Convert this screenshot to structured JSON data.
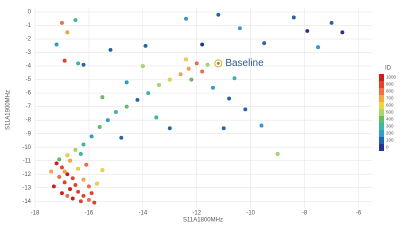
{
  "chart_data": {
    "type": "scatter",
    "x_label": "S11A1800MHz",
    "y_label": "S11A1900MHz",
    "xlim": [
      -18,
      -5.5
    ],
    "ylim": [
      -14.5,
      0.3
    ],
    "xticks": [
      -18,
      -16,
      -14,
      -12,
      -10,
      -8,
      -6
    ],
    "yticks": [
      0,
      -1,
      -2,
      -3,
      -4,
      -5,
      -6,
      -7,
      -8,
      -9,
      -10,
      -11,
      -12,
      -13,
      -14
    ],
    "grid": true,
    "x": [
      -17.2,
      -17,
      -16.8,
      -16.6,
      -16.9,
      -16.5,
      -16.7,
      -16.4,
      -16.2,
      -16.6,
      -16.3,
      -16,
      -17.1,
      -16.9,
      -16.7,
      -16.4,
      -16.2,
      -16,
      -15.9,
      -15.8,
      -17.3,
      -17,
      -16.8,
      -16.5,
      -16.2,
      -15.9,
      -15.6,
      -15.3,
      -15,
      -14.6,
      -14.2,
      -13.8,
      -13.4,
      -13,
      -12.6,
      -12.3,
      -12,
      -11.8,
      -12.4,
      -11.6,
      -12.2,
      -11.4,
      -10.8,
      -10.2,
      -9.6,
      -9,
      -17,
      -16.8,
      -16.5,
      -17.2,
      -16.9,
      -16.4,
      -16.2,
      -15.2,
      -14.6,
      -13.9,
      -13.5,
      -13,
      -12.4,
      -11.8,
      -11.2,
      -10.4,
      -9.5,
      -8.4,
      -7.9,
      -7.5,
      -7,
      -6.6,
      -10.6,
      -11,
      -14.8,
      -15.5,
      -14,
      -17.4,
      -16.1,
      -15.7,
      -16.8,
      -17.1,
      -16.3,
      -15.5
    ],
    "y": [
      -11.2,
      -11.5,
      -12,
      -12.3,
      -12.6,
      -12.8,
      -13.1,
      -13.3,
      -13.6,
      -13.8,
      -14,
      -13.9,
      -12.2,
      -11.8,
      -11,
      -11.6,
      -12.4,
      -12.9,
      -13.4,
      -14.1,
      -12.9,
      -13.4,
      -10.6,
      -10.2,
      -9.8,
      -9.2,
      -8.5,
      -8,
      -7.4,
      -7,
      -6.5,
      -6,
      -5.4,
      -5,
      -4.6,
      -4.2,
      -3.8,
      -4.4,
      -3.5,
      -3.9,
      -5,
      -5.6,
      -6.4,
      -7.2,
      -8.4,
      -10.5,
      -0.8,
      -1.5,
      -0.6,
      -2.4,
      -3.6,
      -3.8,
      -3.9,
      -2.8,
      -5.2,
      -2.5,
      -7.8,
      -8.6,
      -0.5,
      -2.4,
      -0.2,
      -1.2,
      -2.3,
      -0.4,
      -1.4,
      -2.6,
      -0.8,
      -1.5,
      -4.9,
      -8.6,
      -9.3,
      -6.3,
      -4,
      -11.8,
      -11.3,
      -12.7,
      -13.6,
      -10.9,
      -10.5,
      -11.7
    ],
    "ids": [
      950,
      900,
      980,
      870,
      920,
      850,
      1000,
      940,
      890,
      960,
      910,
      830,
      780,
      720,
      650,
      600,
      700,
      800,
      880,
      930,
      990,
      970,
      550,
      450,
      300,
      200,
      350,
      150,
      250,
      400,
      100,
      320,
      500,
      600,
      700,
      650,
      750,
      820,
      560,
      480,
      380,
      220,
      120,
      60,
      180,
      520,
      800,
      720,
      250,
      150,
      900,
      300,
      90,
      60,
      200,
      140,
      260,
      80,
      160,
      40,
      120,
      200,
      70,
      110,
      30,
      180,
      50,
      20,
      340,
      140,
      90,
      420,
      530,
      680,
      760,
      620,
      840,
      410,
      330,
      560
    ],
    "annotation": {
      "text": "Baseline",
      "x": -11.2,
      "y": -3.8
    },
    "colorbar": {
      "title": "ID",
      "ticks": [
        1000,
        900,
        800,
        700,
        600,
        500,
        400,
        300,
        200,
        100,
        0
      ],
      "colors": [
        "#d7191c",
        "#e8402a",
        "#f46d43",
        "#f9a645",
        "#f2d53c",
        "#a6d96a",
        "#66bd63",
        "#3cb8a6",
        "#2c9fd0",
        "#2166ac",
        "#253494"
      ]
    }
  }
}
